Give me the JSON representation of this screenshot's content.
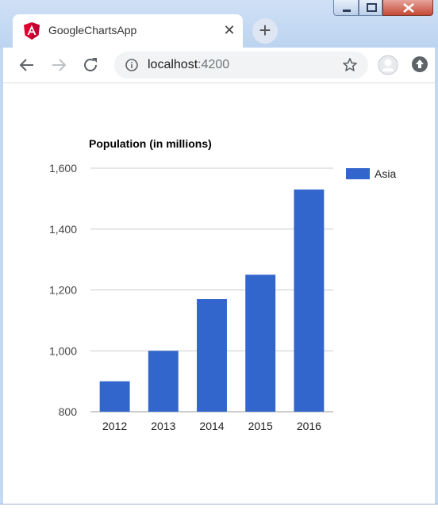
{
  "browser": {
    "tab_title": "GoogleChartsApp",
    "address_host": "localhost",
    "address_port": ":4200"
  },
  "chart_data": {
    "type": "bar",
    "title": "Population (in millions)",
    "categories": [
      "2012",
      "2013",
      "2014",
      "2015",
      "2016"
    ],
    "series": [
      {
        "name": "Asia",
        "values": [
          900,
          1000,
          1170,
          1250,
          1530
        ],
        "color": "#3366cc"
      }
    ],
    "ylim": [
      800,
      1600
    ],
    "yticks": [
      800,
      1000,
      1200,
      1400,
      1600
    ],
    "ytick_labels": [
      "800",
      "1,000",
      "1,200",
      "1,400",
      "1,600"
    ],
    "grid": true,
    "legend": "right"
  }
}
